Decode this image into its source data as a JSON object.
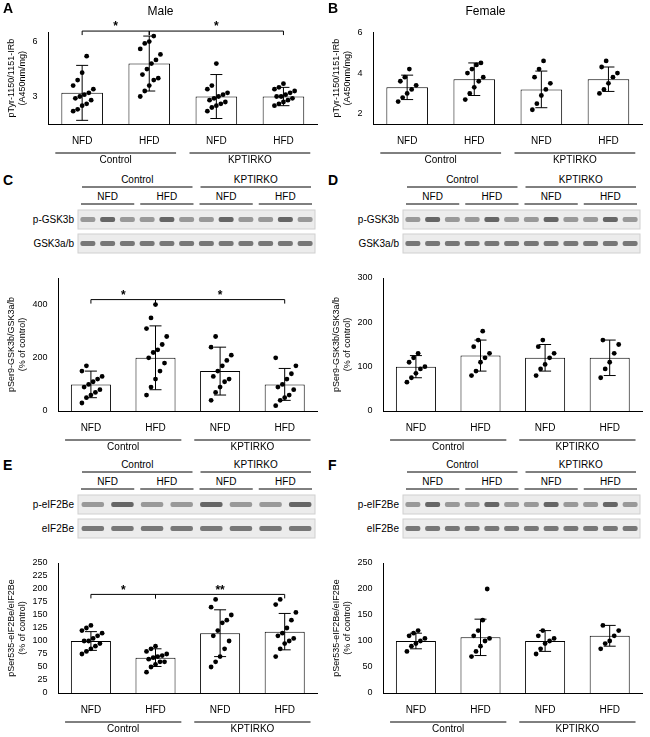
{
  "chart_data": [
    {
      "panel": "A",
      "type": "bar",
      "title": "Male",
      "categories": [
        "NFD",
        "HFD",
        "NFD",
        "HFD"
      ],
      "groups": [
        "Control",
        "KPTIRKO"
      ],
      "y_label": [
        "pTyr-1150/1151-IRb",
        "(A450nm/mg)"
      ],
      "ylim": [
        1.5,
        6.5
      ],
      "yticks": [
        3,
        6
      ],
      "grid": false,
      "color": "#ffffff",
      "values": [
        3.2,
        4.8,
        3.0,
        3.0
      ],
      "errors": [
        1.5,
        1.5,
        1.2,
        0.5
      ],
      "points": [
        [
          2.2,
          2.3,
          2.5,
          2.6,
          2.8,
          2.9,
          3.0,
          3.1,
          3.2,
          3.4,
          3.6,
          3.9,
          4.3,
          5.2
        ],
        [
          3.0,
          3.3,
          3.6,
          3.9,
          4.0,
          4.2,
          4.5,
          4.8,
          5.0,
          5.3,
          5.6,
          5.9,
          6.0,
          6.3
        ],
        [
          2.2,
          2.4,
          2.5,
          2.6,
          2.7,
          2.8,
          2.9,
          3.0,
          3.1,
          3.2,
          3.4,
          3.6,
          4.8
        ],
        [
          2.5,
          2.6,
          2.7,
          2.8,
          2.9,
          3.0,
          3.0,
          3.1,
          3.2,
          3.3,
          3.4,
          3.5,
          3.7
        ]
      ],
      "significance": [
        {
          "from": 0,
          "to": 1,
          "label": "*"
        },
        {
          "from": 1,
          "to": 3,
          "label": "*"
        }
      ]
    },
    {
      "panel": "B",
      "type": "bar",
      "title": "Female",
      "categories": [
        "NFD",
        "HFD",
        "NFD",
        "HFD"
      ],
      "groups": [
        "Control",
        "KPTIRKO"
      ],
      "y_label": [
        "pTyr-1150/1151-IRb",
        "(A450nm/mg)"
      ],
      "ylim": [
        1.5,
        6
      ],
      "yticks": [
        2,
        4,
        6
      ],
      "grid": false,
      "color": "#ffffff",
      "values": [
        3.3,
        3.7,
        3.2,
        3.7
      ],
      "errors": [
        0.6,
        0.8,
        0.9,
        0.6
      ],
      "points": [
        [
          2.6,
          2.8,
          3.0,
          3.2,
          3.4,
          3.6,
          3.8,
          4.2
        ],
        [
          2.7,
          3.0,
          3.3,
          3.6,
          3.8,
          4.0,
          4.2,
          4.4,
          4.5
        ],
        [
          2.2,
          2.5,
          2.9,
          3.2,
          3.5,
          3.8,
          4.2,
          4.6
        ],
        [
          3.0,
          3.2,
          3.5,
          3.8,
          4.0,
          4.3,
          4.6
        ]
      ],
      "significance": []
    },
    {
      "panel": "C",
      "type": "bar",
      "categories": [
        "NFD",
        "HFD",
        "NFD",
        "HFD"
      ],
      "groups": [
        "Control",
        "KPTIRKO"
      ],
      "blot": {
        "rows": [
          "p-GSK3b",
          "GSK3a/b"
        ]
      },
      "y_label": [
        "pSer9-GSK3b/GSK3a/b",
        "(% of control)"
      ],
      "ylim": [
        0,
        500
      ],
      "yticks": [
        0,
        200,
        400
      ],
      "grid": false,
      "color": "#ffffff",
      "values": [
        100,
        200,
        150,
        100
      ],
      "errors": [
        50,
        120,
        90,
        60
      ],
      "points": [
        [
          30,
          50,
          60,
          70,
          80,
          90,
          100,
          110,
          120,
          130,
          150,
          170
        ],
        [
          60,
          90,
          120,
          150,
          180,
          200,
          220,
          230,
          250,
          280,
          310,
          350,
          400
        ],
        [
          40,
          70,
          90,
          110,
          120,
          130,
          150,
          170,
          190,
          210,
          240,
          280
        ],
        [
          20,
          40,
          50,
          60,
          80,
          90,
          100,
          120,
          140,
          170,
          200
        ]
      ],
      "significance": [
        {
          "from": 0,
          "to": 1,
          "label": "*"
        },
        {
          "from": 1,
          "to": 3,
          "label": "*"
        }
      ]
    },
    {
      "panel": "D",
      "type": "bar",
      "categories": [
        "NFD",
        "HFD",
        "NFD",
        "HFD"
      ],
      "groups": [
        "Control",
        "KPTIRKO"
      ],
      "blot": {
        "rows": [
          "p-GSK3b",
          "GSK3a/b"
        ]
      },
      "y_label": [
        "pSer9-GSK3b/GSK3a/b",
        "(% of control)"
      ],
      "ylim": [
        0,
        300
      ],
      "yticks": [
        0,
        100,
        200,
        300
      ],
      "grid": false,
      "color": "#ffffff",
      "values": [
        100,
        125,
        120,
        120
      ],
      "errors": [
        25,
        35,
        30,
        40
      ],
      "points": [
        [
          65,
          75,
          85,
          95,
          100,
          110,
          120,
          130
        ],
        [
          80,
          90,
          110,
          120,
          130,
          145,
          160,
          180
        ],
        [
          80,
          95,
          105,
          120,
          130,
          145,
          160
        ],
        [
          75,
          95,
          110,
          130,
          150,
          160
        ]
      ],
      "significance": []
    },
    {
      "panel": "E",
      "type": "bar",
      "categories": [
        "NFD",
        "HFD",
        "NFD",
        "HFD"
      ],
      "groups": [
        "Control",
        "KPTIRKO"
      ],
      "blot": {
        "rows": [
          "p-eIF2Be",
          "eIF2Be"
        ]
      },
      "y_label": [
        "pSer535-eIF2Be/eIF2Be",
        "(% of control)"
      ],
      "ylim": [
        0,
        250
      ],
      "yticks": [
        0,
        25,
        50,
        75,
        100,
        125,
        150,
        175,
        200,
        225,
        250
      ],
      "grid": false,
      "color": "#ffffff",
      "values": [
        100,
        68,
        115,
        118
      ],
      "errors": [
        18,
        17,
        45,
        35
      ],
      "points": [
        [
          75,
          80,
          85,
          90,
          95,
          100,
          100,
          105,
          110,
          115,
          120,
          125,
          130
        ],
        [
          40,
          50,
          55,
          60,
          60,
          65,
          68,
          70,
          72,
          75,
          80,
          85,
          90
        ],
        [
          50,
          60,
          70,
          85,
          100,
          110,
          120,
          135,
          140,
          150,
          165,
          180
        ],
        [
          70,
          85,
          95,
          100,
          105,
          110,
          115,
          125,
          140,
          155,
          170,
          180
        ]
      ],
      "significance": [
        {
          "from": 0,
          "to": 1,
          "label": "*"
        },
        {
          "from": 1,
          "to": 3,
          "label": "**"
        }
      ]
    },
    {
      "panel": "F",
      "type": "bar",
      "categories": [
        "NFD",
        "HFD",
        "NFD",
        "HFD"
      ],
      "groups": [
        "Control",
        "KPTIRKO"
      ],
      "blot": {
        "rows": [
          "p-eIF2Be",
          "eIF2Be"
        ]
      },
      "y_label": [
        "pSer535-eIF2Be/eIF2Be",
        "(% of control)"
      ],
      "ylim": [
        0,
        250
      ],
      "yticks": [
        0,
        50,
        100,
        150,
        200,
        250
      ],
      "grid": false,
      "color": "#ffffff",
      "values": [
        100,
        107,
        100,
        110
      ],
      "errors": [
        15,
        35,
        20,
        20
      ],
      "points": [
        [
          80,
          90,
          95,
          100,
          105,
          110,
          115,
          120
        ],
        [
          70,
          80,
          90,
          100,
          105,
          110,
          120,
          140,
          200
        ],
        [
          75,
          85,
          95,
          100,
          105,
          110,
          120
        ],
        [
          85,
          95,
          100,
          110,
          120,
          130
        ]
      ],
      "significance": []
    }
  ]
}
